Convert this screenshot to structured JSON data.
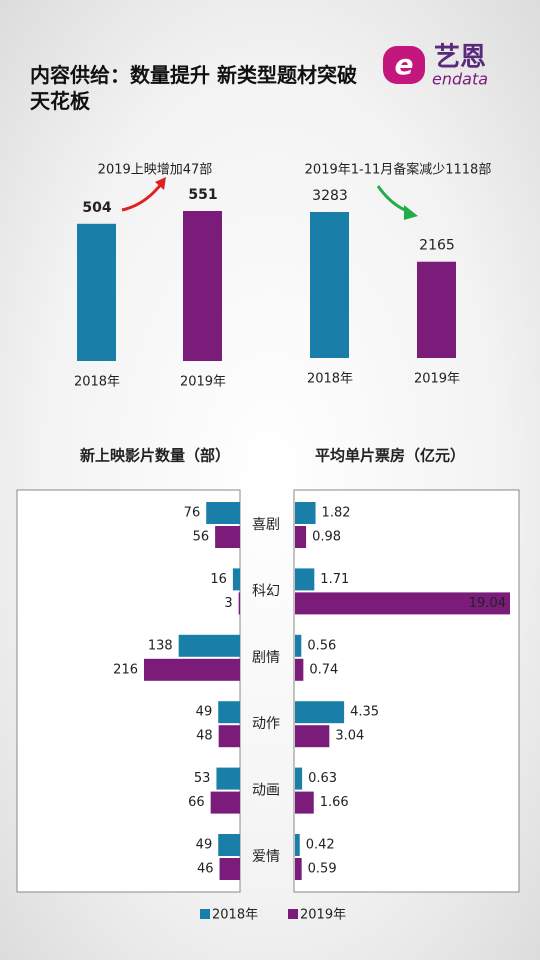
{
  "title": "内容供给：数量提升 新类型题材突破天花板",
  "logo": {
    "name": "艺恩",
    "sub": "endata"
  },
  "chart_data": [
    {
      "type": "bar",
      "annotation": "2019上映增加47部",
      "categories": [
        "2018年",
        "2019年"
      ],
      "values": [
        504,
        551
      ],
      "colors": [
        "#1a7fa8",
        "#7b1c7b"
      ]
    },
    {
      "type": "bar",
      "annotation": "2019年1-11月备案减少1118部",
      "categories": [
        "2018年",
        "2019年"
      ],
      "values": [
        3283,
        2165
      ],
      "colors": [
        "#1a7fa8",
        "#7b1c7b"
      ]
    },
    {
      "type": "hbar",
      "title": "新上映影片数量（部）",
      "categories": [
        "喜剧",
        "科幻",
        "剧情",
        "动作",
        "动画",
        "爱情"
      ],
      "series": [
        {
          "name": "2018年",
          "color": "#1a7fa8",
          "values": [
            76,
            16,
            138,
            49,
            53,
            49
          ]
        },
        {
          "name": "2019年",
          "color": "#7b1c7b",
          "values": [
            56,
            3,
            216,
            48,
            66,
            46
          ]
        }
      ]
    },
    {
      "type": "hbar",
      "title": "平均单片票房（亿元）",
      "series": [
        {
          "color": "#1a7fa8",
          "values": [
            1.82,
            1.71,
            0.56,
            4.35,
            0.63,
            0.42
          ]
        },
        {
          "color": "#7b1c7b",
          "values": [
            0.98,
            19.04,
            0.74,
            3.04,
            1.66,
            0.59
          ]
        }
      ]
    }
  ]
}
